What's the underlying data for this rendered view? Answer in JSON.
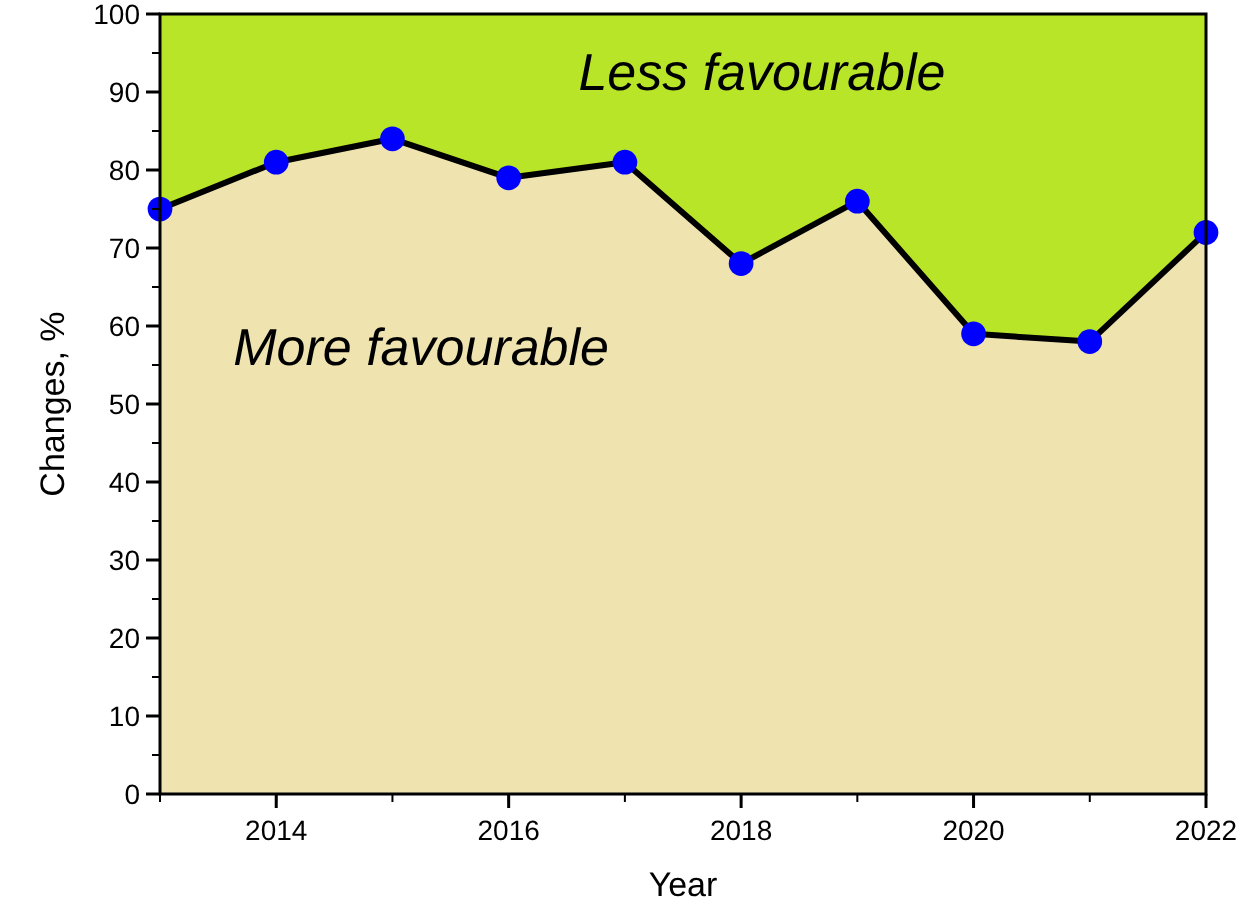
{
  "chart_data": {
    "type": "area",
    "xlabel": "Year",
    "ylabel": "Changes, %",
    "x": [
      2013,
      2014,
      2015,
      2016,
      2017,
      2018,
      2019,
      2020,
      2021,
      2022
    ],
    "xlim": [
      2013,
      2022
    ],
    "xticks": [
      2014,
      2016,
      2018,
      2020,
      2022
    ],
    "ylim": [
      0,
      100
    ],
    "yticks": [
      0,
      10,
      20,
      30,
      40,
      50,
      60,
      70,
      80,
      90,
      100
    ],
    "grid": false,
    "bands": [
      {
        "axis": "y",
        "from": 0,
        "to": 100,
        "label": "Less favourable",
        "color": "#b9e529"
      }
    ],
    "series": [
      {
        "name": "More favourable",
        "color": "#efe3b0",
        "colors": [
          "#0000ff",
          "#0000ff",
          "#0000ff",
          "#0000ff",
          "#0000ff",
          "#0000ff",
          "#0000ff",
          "#0000ff",
          "#0000ff",
          "#0000ff"
        ],
        "marker": "circle",
        "line_style": "solid",
        "values": [
          75,
          81,
          84,
          79,
          81,
          68,
          76,
          59,
          58,
          72
        ]
      }
    ]
  }
}
